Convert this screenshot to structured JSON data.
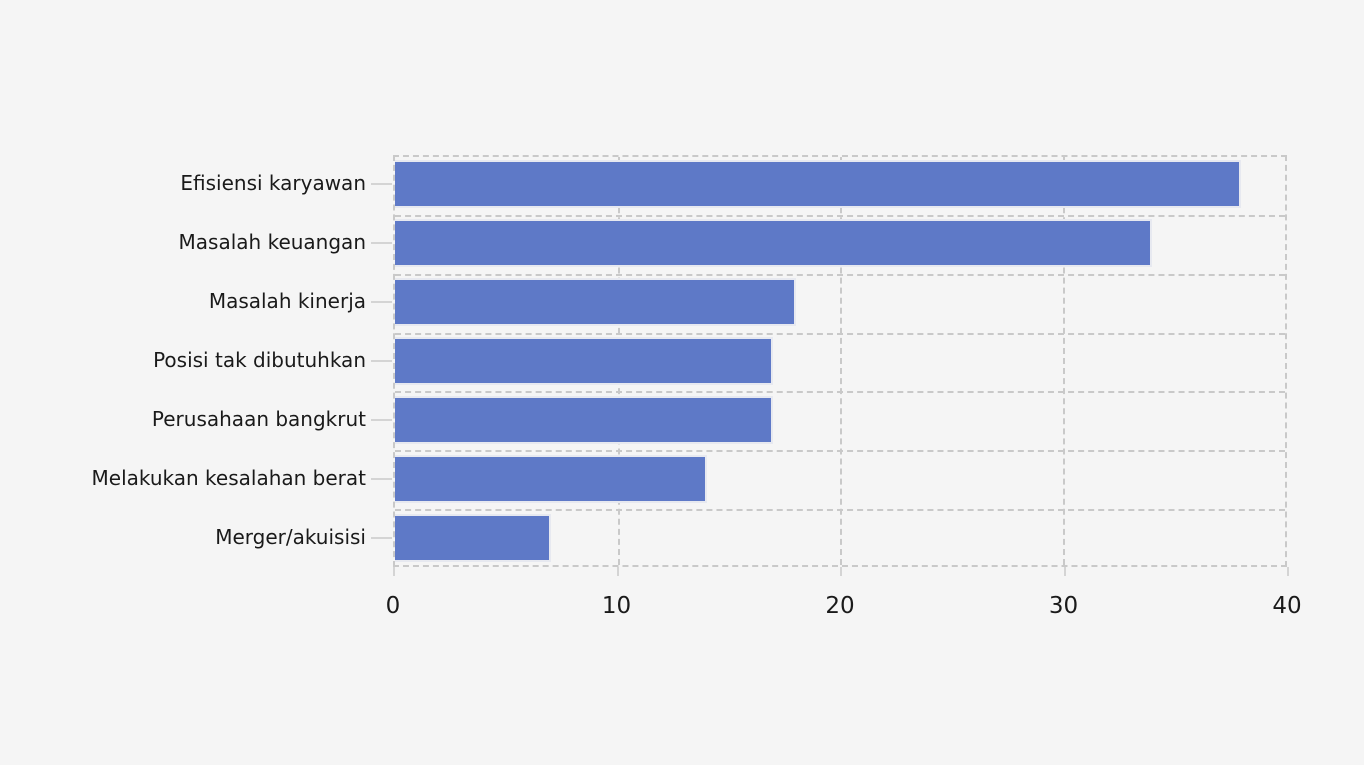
{
  "chart_data": {
    "type": "bar",
    "orientation": "horizontal",
    "title": "",
    "xlabel": "",
    "ylabel": "",
    "categories": [
      "Efisiensi karyawan",
      "Masalah keuangan",
      "Masalah kinerja",
      "Posisi tak dibutuhkan",
      "Perusahaan bangkrut",
      "Melakukan kesalahan berat",
      "Merger/akuisisi"
    ],
    "values": [
      38,
      34,
      18,
      17,
      17,
      14,
      7
    ],
    "x_ticks": [
      "0",
      "10",
      "20",
      "30",
      "40"
    ],
    "x_tick_values": [
      0,
      10,
      20,
      30,
      40
    ],
    "xlim": [
      0,
      40
    ],
    "grid": "dashed",
    "legend": "none",
    "colors": {
      "bar": "#5e79c7",
      "bar_border": "#e7e9f0",
      "background": "#f5f5f5",
      "grid": "#c9c9c9",
      "text": "#1a1a1a"
    }
  }
}
